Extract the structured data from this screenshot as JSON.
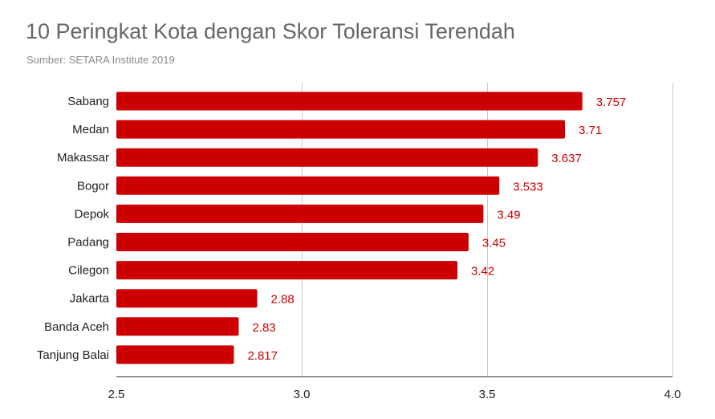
{
  "title": "10 Peringkat Kota dengan Skor Toleransi Terendah",
  "subtitle": "Sumber: SETARA Institute 2019",
  "colors": {
    "bar": "#cc0000",
    "value_label": "#cc0000",
    "grid": "#cccccc",
    "title": "#666666"
  },
  "chart_data": {
    "type": "bar",
    "orientation": "horizontal",
    "title": "10 Peringkat Kota dengan Skor Toleransi Terendah",
    "subtitle": "Sumber: SETARA Institute 2019",
    "xlabel": "",
    "ylabel": "",
    "categories": [
      "Sabang",
      "Medan",
      "Makassar",
      "Bogor",
      "Depok",
      "Padang",
      "Cilegon",
      "Jakarta",
      "Banda Aceh",
      "Tanjung Balai"
    ],
    "values": [
      3.757,
      3.71,
      3.637,
      3.533,
      3.49,
      3.45,
      3.42,
      2.88,
      2.83,
      2.817
    ],
    "value_labels": [
      "3.757",
      "3.71",
      "3.637",
      "3.533",
      "3.49",
      "3.45",
      "3.42",
      "2.88",
      "2.83",
      "2.817"
    ],
    "xlim": [
      2.5,
      4.0
    ],
    "xticks": [
      2.5,
      3.0,
      3.5,
      4.0
    ],
    "xtick_labels": [
      "2.5",
      "3.0",
      "3.5",
      "4.0"
    ],
    "grid": true,
    "legend": "none"
  }
}
